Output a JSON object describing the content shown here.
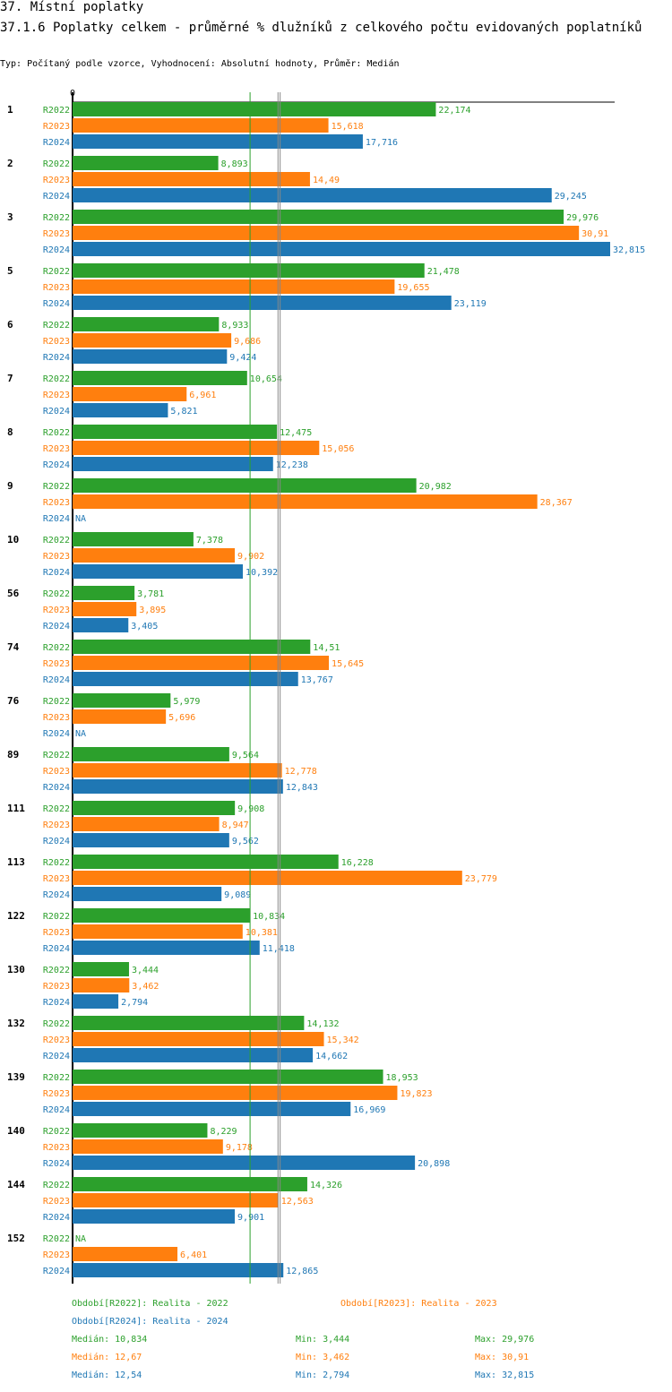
{
  "header": {
    "title": "37. Místní poplatky",
    "subtitle": "37.1.6 Poplatky celkem - průměrné % dlužníků z celkového počtu evidovaných poplatníků",
    "info": "Typ: Počítaný podle vzorce, Vyhodnocení: Absolutní hodnoty, Průměr: Medián"
  },
  "chart_data": {
    "type": "bar",
    "orientation": "horizontal",
    "xlim": [
      0,
      32.815
    ],
    "zero_label": "0",
    "colors": {
      "R2022": "#2ca02c",
      "R2023": "#ff7f0e",
      "R2024": "#1f77b4"
    },
    "categories": [
      "1",
      "2",
      "3",
      "5",
      "6",
      "7",
      "8",
      "9",
      "10",
      "56",
      "74",
      "76",
      "89",
      "111",
      "113",
      "122",
      "130",
      "132",
      "139",
      "140",
      "144",
      "152"
    ],
    "series": [
      {
        "name": "R2022",
        "values": [
          22.174,
          8.893,
          29.976,
          21.478,
          8.933,
          10.654,
          12.475,
          20.982,
          7.378,
          3.781,
          14.51,
          5.979,
          9.564,
          9.908,
          16.228,
          10.834,
          3.444,
          14.132,
          18.953,
          8.229,
          14.326,
          null
        ]
      },
      {
        "name": "R2023",
        "values": [
          15.618,
          14.49,
          30.91,
          19.655,
          9.686,
          6.961,
          15.056,
          28.367,
          9.902,
          3.895,
          15.645,
          5.696,
          12.778,
          8.947,
          23.779,
          10.381,
          3.462,
          15.342,
          19.823,
          9.178,
          12.563,
          6.401
        ]
      },
      {
        "name": "R2024",
        "values": [
          17.716,
          29.245,
          32.815,
          23.119,
          9.424,
          5.821,
          12.238,
          null,
          10.392,
          3.405,
          13.767,
          null,
          12.843,
          9.562,
          9.089,
          11.418,
          2.794,
          14.662,
          16.969,
          20.898,
          9.901,
          12.865
        ]
      }
    ],
    "na_label": "NA",
    "medians": {
      "R2022": 10.834,
      "R2023": 12.67,
      "R2024": 12.54
    }
  },
  "legend": {
    "r2022": "Období[R2022]: Realita - 2022",
    "r2023": "Období[R2023]: Realita - 2023",
    "r2024": "Období[R2024]: Realita - 2024",
    "stats": [
      {
        "median": "Medián: 10,834",
        "min": "Min: 3,444",
        "max": "Max: 29,976"
      },
      {
        "median": "Medián: 12,67",
        "min": "Min: 3,462",
        "max": "Max: 30,91"
      },
      {
        "median": "Medián: 12,54",
        "min": "Min: 2,794",
        "max": "Max: 32,815"
      }
    ]
  }
}
